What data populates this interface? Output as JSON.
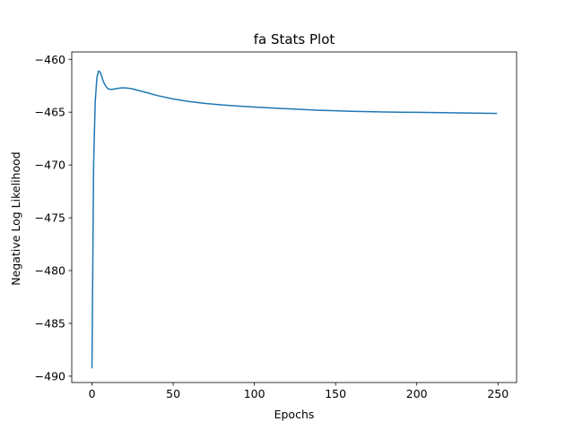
{
  "chart_data": {
    "type": "line",
    "title": "fa Stats Plot",
    "xlabel": "Epochs",
    "ylabel": "Negative Log Likelihood",
    "xlim": [
      -12.45,
      261.45
    ],
    "ylim": [
      -490.6,
      -459.3
    ],
    "xticks": [
      0,
      50,
      100,
      150,
      200,
      250
    ],
    "yticks": [
      -490,
      -485,
      -480,
      -475,
      -470,
      -465,
      -460
    ],
    "xtick_labels": [
      "0",
      "50",
      "100",
      "150",
      "200",
      "250"
    ],
    "ytick_labels": [
      "−490",
      "−485",
      "−480",
      "−475",
      "−470",
      "−465",
      "−460"
    ],
    "grid": false,
    "legend": "none",
    "line_color": "#1f77b4",
    "series": [
      {
        "x": [
          0,
          1,
          2,
          3,
          4,
          5,
          6,
          7,
          8,
          9,
          10,
          12,
          14,
          16,
          18,
          20,
          22,
          25,
          30,
          35,
          40,
          50,
          60,
          70,
          80,
          90,
          100,
          110,
          120,
          130,
          140,
          150,
          160,
          170,
          180,
          190,
          200,
          210,
          220,
          230,
          240,
          249
        ],
        "y": [
          -489.2,
          -470.0,
          -464.0,
          -461.8,
          -461.1,
          -461.2,
          -461.6,
          -462.1,
          -462.4,
          -462.65,
          -462.8,
          -462.85,
          -462.8,
          -462.75,
          -462.7,
          -462.7,
          -462.72,
          -462.8,
          -463.0,
          -463.2,
          -463.42,
          -463.75,
          -464.0,
          -464.18,
          -464.32,
          -464.42,
          -464.52,
          -464.6,
          -464.68,
          -464.75,
          -464.82,
          -464.87,
          -464.92,
          -464.95,
          -464.98,
          -465.0,
          -465.02,
          -465.04,
          -465.06,
          -465.08,
          -465.1,
          -465.12
        ]
      }
    ]
  }
}
